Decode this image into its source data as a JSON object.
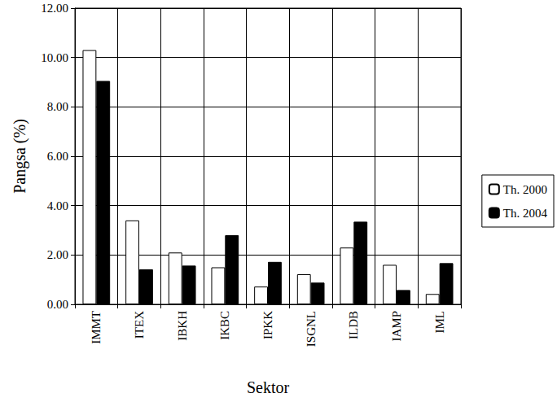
{
  "chart_data": {
    "type": "bar",
    "x_label": "Sektor",
    "y_label": "Pangsa (%)",
    "categories": [
      "IMMT",
      "ITEX",
      "IBKH",
      "IKBC",
      "IPKK",
      "ISGNL",
      "ILDB",
      "IAMP",
      "IML"
    ],
    "series": [
      {
        "name": "Th. 2000",
        "color": "#ffffff",
        "values": [
          10.3,
          3.4,
          2.1,
          1.5,
          0.72,
          1.22,
          2.3,
          1.6,
          0.42
        ]
      },
      {
        "name": "Th. 2004",
        "color": "#000000",
        "values": [
          9.05,
          1.42,
          1.57,
          2.8,
          1.72,
          0.88,
          3.35,
          0.58,
          1.67
        ]
      }
    ],
    "ylim": [
      0,
      12
    ],
    "yticks": [
      {
        "value": 0,
        "label": "0.00"
      },
      {
        "value": 2,
        "label": "2.00"
      },
      {
        "value": 4,
        "label": "4.00"
      },
      {
        "value": 6,
        "label": "6.00"
      },
      {
        "value": 8,
        "label": "8.00"
      },
      {
        "value": 10,
        "label": "10.00"
      },
      {
        "value": 12,
        "label": "12.00"
      }
    ],
    "grid": true,
    "legend": "right"
  }
}
